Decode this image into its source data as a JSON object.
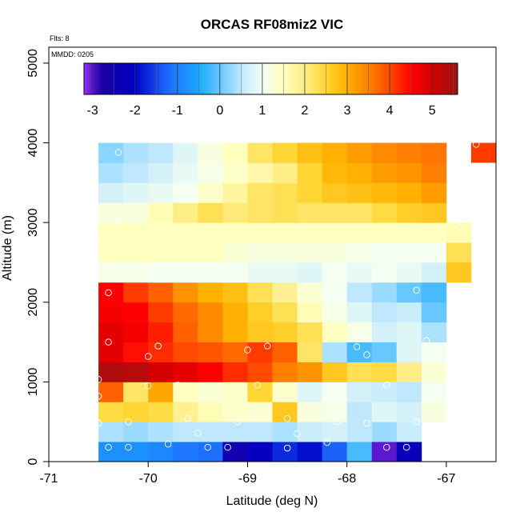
{
  "chart_data": {
    "type": "heatmap",
    "title": "ORCAS RF08miz2 VIC",
    "flights_note": "Flts: 8",
    "date_note": "MMDD: 0205",
    "xlabel": "Latitude (deg N)",
    "ylabel": "Altitude (m)",
    "xlim": [
      -71,
      -66.5
    ],
    "ylim": [
      0,
      5200
    ],
    "x_ticks": [
      -71,
      -70,
      -69,
      -68,
      -67
    ],
    "x_tick_labels": [
      "-71",
      "-70",
      "-69",
      "-68",
      "-67"
    ],
    "y_ticks": [
      0,
      1000,
      2000,
      3000,
      4000,
      5000
    ],
    "y_tick_labels": [
      "0",
      "1000",
      "2000",
      "3000",
      "4000",
      "5000"
    ],
    "colorbar": {
      "range": [
        -3.2,
        5.6
      ],
      "ticks": [
        -3,
        -2,
        -1,
        0,
        1,
        2,
        3,
        4,
        5
      ],
      "tick_labels": [
        "-3",
        "-2",
        "-1",
        "0",
        "1",
        "2",
        "3",
        "4",
        "5"
      ],
      "stops": [
        {
          "v": -3.2,
          "c": "#9b30ff"
        },
        {
          "v": -2.8,
          "c": "#1a00a0"
        },
        {
          "v": -2.0,
          "c": "#0000c8"
        },
        {
          "v": -1.2,
          "c": "#1f6fff"
        },
        {
          "v": -0.5,
          "c": "#1aa8ff"
        },
        {
          "v": 0.0,
          "c": "#66c8ff"
        },
        {
          "v": 0.5,
          "c": "#bfe8ff"
        },
        {
          "v": 1.0,
          "c": "#f4fff2"
        },
        {
          "v": 1.5,
          "c": "#ffffc0"
        },
        {
          "v": 2.0,
          "c": "#ffee88"
        },
        {
          "v": 2.5,
          "c": "#ffd633"
        },
        {
          "v": 3.0,
          "c": "#ffb000"
        },
        {
          "v": 3.5,
          "c": "#ff8000"
        },
        {
          "v": 4.0,
          "c": "#ff4a00"
        },
        {
          "v": 4.5,
          "c": "#ff0000"
        },
        {
          "v": 5.0,
          "c": "#d40000"
        },
        {
          "v": 5.6,
          "c": "#9a1414"
        }
      ]
    },
    "x_bin_edges": [
      -70.5,
      -70.25,
      -70.0,
      -69.75,
      -69.5,
      -69.25,
      -69.0,
      -68.75,
      -68.5,
      -68.25,
      -68.0,
      -67.75,
      -67.5,
      -67.25,
      -67.0,
      -66.75
    ],
    "y_bin_edges": [
      0,
      250,
      500,
      750,
      1000,
      1250,
      1500,
      1750,
      2000,
      2250,
      2500,
      2750,
      3000,
      3250,
      3500,
      3750,
      4000
    ],
    "grid": false,
    "values": [
      [
        -0.8,
        -0.8,
        -0.9,
        -1.1,
        -1.2,
        -2.5,
        -2.2,
        -1.7,
        -1.9,
        -1.3,
        -0.2,
        -3.0,
        -2.3,
        null,
        null
      ],
      [
        0.4,
        0.3,
        0.4,
        0.5,
        0.5,
        0.5,
        0.5,
        0.4,
        0.6,
        0.7,
        0.5,
        0.3,
        0.6,
        null,
        null
      ],
      [
        2.4,
        2.5,
        2.4,
        1.9,
        1.6,
        1.4,
        1.3,
        2.7,
        1.2,
        1.1,
        0.5,
        0.8,
        0.7,
        1.2,
        null
      ],
      [
        3.8,
        2.2,
        3.1,
        1.5,
        1.3,
        1.4,
        2.5,
        1.4,
        0.8,
        1.0,
        0.7,
        0.6,
        0.5,
        1.0,
        null
      ],
      [
        5.4,
        5.3,
        5.0,
        4.8,
        4.5,
        4.2,
        4.0,
        3.5,
        3.3,
        2.7,
        2.3,
        2.4,
        2.0,
        1.3,
        null
      ],
      [
        4.8,
        4.4,
        4.2,
        4.0,
        3.9,
        3.7,
        4.1,
        3.8,
        2.2,
        0.4,
        -0.2,
        0.0,
        0.8,
        1.0,
        null
      ],
      [
        4.8,
        4.6,
        4.3,
        3.8,
        3.4,
        3.0,
        2.7,
        2.6,
        2.3,
        1.5,
        1.1,
        0.7,
        0.8,
        0.4,
        null
      ],
      [
        4.6,
        4.5,
        4.1,
        3.7,
        3.4,
        3.0,
        2.6,
        2.3,
        1.6,
        1.1,
        0.8,
        0.5,
        0.6,
        0.0,
        null
      ],
      [
        4.5,
        4.1,
        3.8,
        3.3,
        3.0,
        2.8,
        2.3,
        1.9,
        1.3,
        1.0,
        0.5,
        0.3,
        0.0,
        -0.2,
        null
      ],
      [
        1.1,
        1.1,
        1.0,
        1.0,
        1.0,
        1.0,
        0.9,
        0.9,
        0.8,
        1.0,
        0.9,
        1.0,
        0.9,
        0.7,
        2.7
      ],
      [
        1.5,
        1.5,
        1.5,
        1.5,
        1.5,
        1.3,
        1.2,
        1.2,
        1.2,
        1.2,
        1.1,
        1.0,
        1.0,
        1.0,
        2.3
      ],
      [
        1.5,
        1.5,
        1.5,
        1.5,
        1.5,
        1.5,
        1.5,
        1.5,
        1.5,
        1.5,
        1.5,
        1.5,
        1.5,
        1.5,
        1.6
      ],
      [
        1.2,
        1.2,
        1.6,
        2.0,
        2.3,
        2.1,
        2.2,
        2.3,
        2.2,
        2.2,
        2.2,
        2.4,
        2.6,
        2.7,
        null
      ],
      [
        0.7,
        0.8,
        0.9,
        1.0,
        1.4,
        1.8,
        2.2,
        2.3,
        2.5,
        2.7,
        2.8,
        2.9,
        3.0,
        3.2,
        null
      ],
      [
        0.4,
        0.5,
        0.7,
        0.9,
        1.1,
        1.4,
        1.7,
        2.0,
        2.5,
        2.9,
        3.0,
        3.2,
        3.3,
        3.5,
        null
      ],
      [
        0.2,
        0.4,
        0.5,
        0.8,
        1.2,
        1.5,
        2.2,
        2.5,
        2.8,
        3.0,
        3.2,
        3.4,
        3.5,
        3.6,
        null
      ]
    ],
    "extra_cells": [
      {
        "x0": -66.75,
        "x1": -66.5,
        "y0": 3750,
        "y1": 4000,
        "value": 4.1
      }
    ],
    "flight_points": [
      [
        -70.4,
        180
      ],
      [
        -70.2,
        180
      ],
      [
        -69.8,
        220
      ],
      [
        -69.4,
        180
      ],
      [
        -69.2,
        180
      ],
      [
        -68.6,
        170
      ],
      [
        -68.2,
        240
      ],
      [
        -67.6,
        180
      ],
      [
        -67.4,
        180
      ],
      [
        -70.5,
        480
      ],
      [
        -70.2,
        500
      ],
      [
        -69.6,
        540
      ],
      [
        -69.5,
        360
      ],
      [
        -69.1,
        500
      ],
      [
        -68.6,
        540
      ],
      [
        -68.5,
        350
      ],
      [
        -68.1,
        500
      ],
      [
        -67.8,
        480
      ],
      [
        -67.3,
        500
      ],
      [
        -70.5,
        820
      ],
      [
        -70.0,
        950
      ],
      [
        -69.7,
        960
      ],
      [
        -68.9,
        960
      ],
      [
        -67.6,
        960
      ],
      [
        -67.0,
        960
      ],
      [
        -70.5,
        1030
      ],
      [
        -67.0,
        1220
      ],
      [
        -70.4,
        1500
      ],
      [
        -70.0,
        1320
      ],
      [
        -69.9,
        1450
      ],
      [
        -69.0,
        1400
      ],
      [
        -68.8,
        1450
      ],
      [
        -67.9,
        1440
      ],
      [
        -67.8,
        1340
      ],
      [
        -67.2,
        1520
      ],
      [
        -70.4,
        2120
      ],
      [
        -67.3,
        2150
      ],
      [
        -70.4,
        2470
      ],
      [
        -70.3,
        3000
      ],
      [
        -66.9,
        2980
      ],
      [
        -66.8,
        3470
      ],
      [
        -70.3,
        3880
      ],
      [
        -66.7,
        3980
      ]
    ]
  }
}
